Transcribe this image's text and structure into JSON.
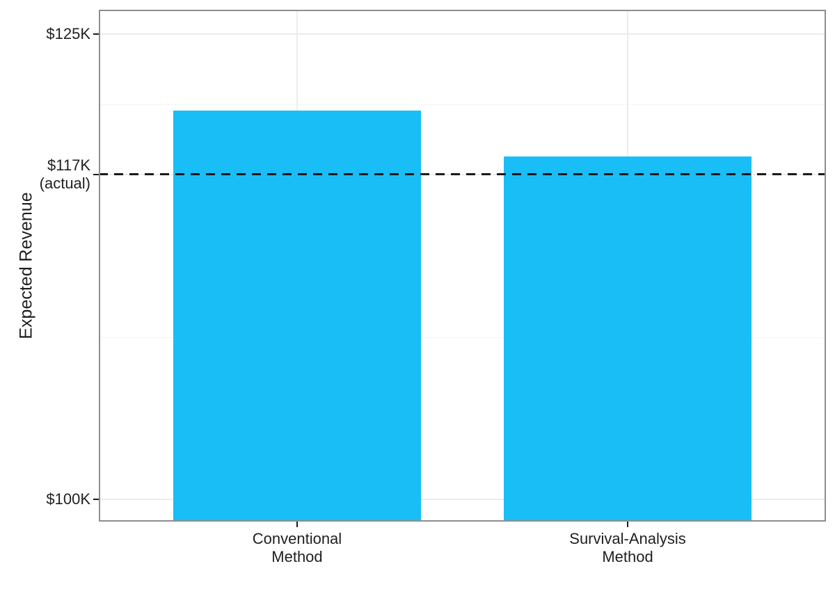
{
  "chart_data": {
    "type": "bar",
    "title": "",
    "xlabel": "",
    "ylabel": "Expected Revenue",
    "categories": [
      "Conventional\nMethod",
      "Survival-Analysis\nMethod"
    ],
    "values": [
      120.9,
      118.4
    ],
    "value_unit": "thousand dollars",
    "ylim": [
      98.8,
      126.3
    ],
    "y_breaks": [
      {
        "value": 100,
        "label": "$100K"
      },
      {
        "value": 117.45,
        "label": "$117K\n(actual)"
      },
      {
        "value": 125,
        "label": "$125K"
      }
    ],
    "y_minor_breaks": [
      108.7,
      121.2
    ],
    "reference_line": {
      "value": 117.45,
      "label": "$117K (actual)",
      "style": "dashed"
    },
    "grid": true,
    "legend": false,
    "colors": {
      "bar_fill": "#19BEF7",
      "reference_line": "#1A1A1A",
      "panel_border": "#8E8E8E",
      "grid_major": "#ECECEC",
      "grid_minor": "#F5F5F5",
      "tick_mark": "#1A1A1A",
      "text": "#1F1F1F",
      "background": "#FFFFFF"
    }
  }
}
